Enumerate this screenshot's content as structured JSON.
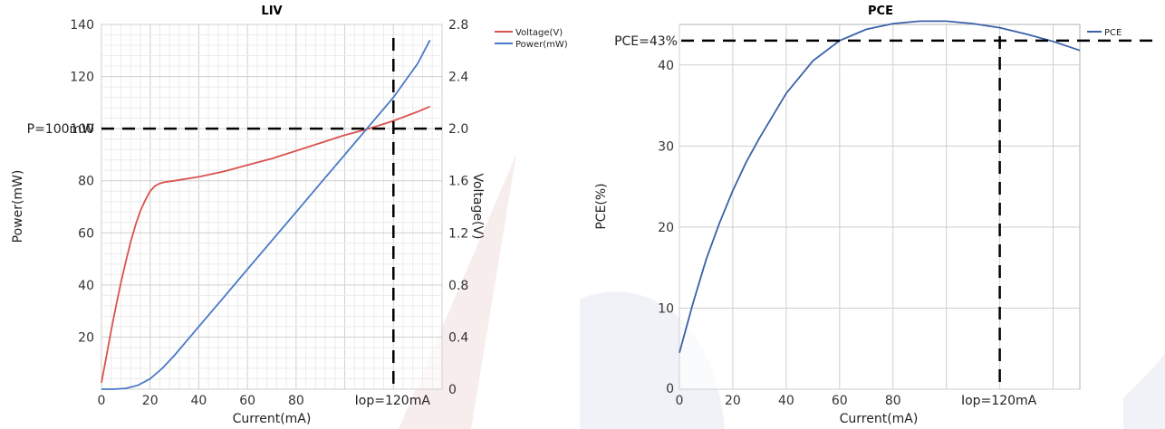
{
  "chart_data": [
    {
      "type": "line",
      "title": "LIV",
      "xlabel": "Current(mA)",
      "ylabel_left": "Power(mW)",
      "ylabel_right": "Voltage(V)",
      "xlim": [
        0,
        140
      ],
      "ylim_left": [
        0,
        140
      ],
      "ylim_right": [
        0,
        2.8
      ],
      "x_ticks": [
        0,
        20,
        40,
        60,
        80
      ],
      "y_ticks_left": [
        20,
        40,
        60,
        80,
        100,
        120,
        140
      ],
      "y_ticks_right": [
        "0",
        "0.4",
        "0.8",
        "1.2",
        "1.6",
        "2.0",
        "2.4",
        "2.8"
      ],
      "grid": true,
      "legend": "top-right, outside plot",
      "series": [
        {
          "name": "Voltage(V)",
          "axis": "right",
          "color": "#d9534f",
          "x": [
            0,
            2,
            4,
            6,
            8,
            10,
            12,
            14,
            16,
            18,
            20,
            22,
            24,
            26,
            30,
            40,
            50,
            60,
            70,
            80,
            90,
            100,
            110,
            120,
            130,
            135
          ],
          "y": [
            0.05,
            0.25,
            0.45,
            0.64,
            0.82,
            0.98,
            1.13,
            1.26,
            1.37,
            1.45,
            1.52,
            1.56,
            1.58,
            1.59,
            1.6,
            1.63,
            1.67,
            1.72,
            1.77,
            1.83,
            1.89,
            1.95,
            2.0,
            2.06,
            2.13,
            2.17
          ]
        },
        {
          "name": "Power(mW)",
          "axis": "left",
          "color": "#4a78c8",
          "x": [
            0,
            5,
            10,
            15,
            20,
            25,
            30,
            40,
            50,
            60,
            70,
            80,
            90,
            100,
            110,
            120,
            130,
            135
          ],
          "y": [
            0,
            0,
            0.3,
            1.5,
            4,
            8,
            13,
            24,
            35,
            46,
            57,
            68,
            79,
            90,
            101,
            112,
            125,
            134
          ]
        }
      ],
      "annotations": [
        {
          "text": "P=100mW",
          "axis": "left",
          "y": 100
        },
        {
          "text": "Iop=120mA",
          "x": 120
        }
      ]
    },
    {
      "type": "line",
      "title": "PCE",
      "xlabel": "Current(mA)",
      "ylabel": "PCE(%)",
      "xlim": [
        0,
        150
      ],
      "ylim": [
        0,
        45
      ],
      "x_ticks": [
        0,
        20,
        40,
        60,
        80
      ],
      "y_ticks": [
        10,
        20,
        30,
        40
      ],
      "grid": true,
      "legend": "top-right, outside plot",
      "series": [
        {
          "name": "PCE",
          "color": "#3a62a8",
          "x": [
            0,
            5,
            10,
            15,
            20,
            25,
            30,
            40,
            50,
            60,
            70,
            80,
            90,
            100,
            110,
            120,
            130,
            140,
            150
          ],
          "y": [
            4.5,
            10.5,
            16,
            20.5,
            24.5,
            28,
            31,
            36.5,
            40.5,
            43,
            44.4,
            45.1,
            45.4,
            45.4,
            45.1,
            44.6,
            43.8,
            42.9,
            41.8
          ]
        }
      ],
      "annotations": [
        {
          "text": "PCE=43%",
          "y": 43
        },
        {
          "text": "Iop=120mA",
          "x": 120
        }
      ]
    }
  ]
}
